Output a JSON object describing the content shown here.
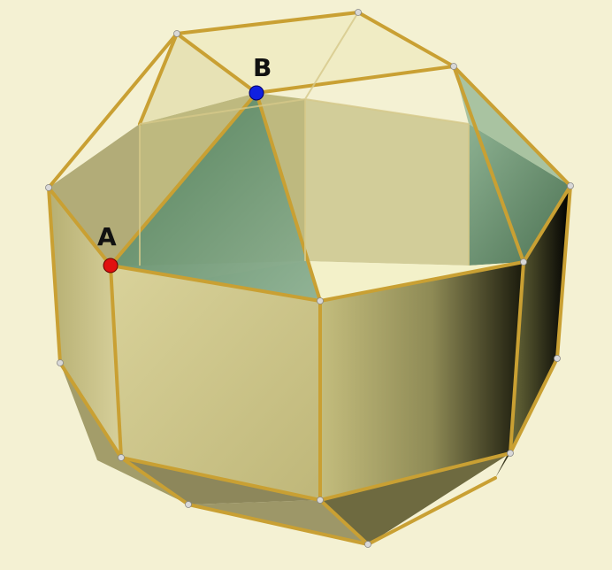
{
  "figure": {
    "background": "#f4f1d3",
    "edge_color": "#c9a033",
    "vertex_color": "#d8d8d8",
    "points": [
      {
        "label": "A",
        "color": "#e01010"
      },
      {
        "label": "B",
        "color": "#1020e0"
      }
    ]
  }
}
